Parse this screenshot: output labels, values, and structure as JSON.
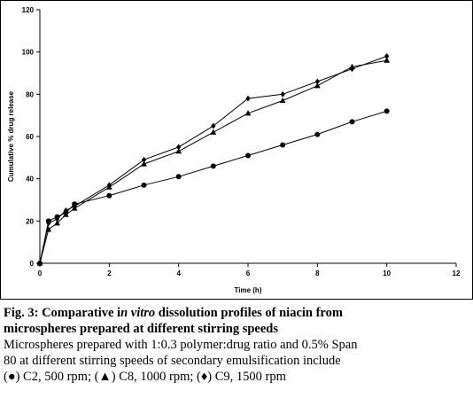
{
  "chart_data": {
    "type": "line",
    "xlabel": "Time (h)",
    "ylabel": "Cumulative % drug release",
    "xlim": [
      0,
      12
    ],
    "ylim": [
      0,
      120
    ],
    "xticks": [
      "0",
      "2",
      "4",
      "6",
      "8",
      "10",
      "12"
    ],
    "yticks": [
      "0",
      "20",
      "40",
      "60",
      "80",
      "100",
      "120"
    ],
    "grid": false,
    "legend": "none",
    "series": [
      {
        "marker": "circle",
        "x": [
          0,
          0.25,
          0.5,
          0.75,
          1,
          2,
          3,
          4,
          5,
          6,
          7,
          8,
          9,
          10
        ],
        "y": [
          0,
          20,
          22,
          24,
          28,
          32,
          37,
          41,
          46,
          51,
          56,
          61,
          67,
          72
        ]
      },
      {
        "marker": "triangle",
        "x": [
          0,
          0.25,
          0.5,
          0.75,
          1,
          2,
          3,
          4,
          5,
          6,
          7,
          8,
          9,
          10
        ],
        "y": [
          0,
          16,
          19,
          23,
          26,
          36,
          47,
          53,
          62,
          71,
          77,
          84,
          93,
          96
        ]
      },
      {
        "marker": "diamond",
        "x": [
          0,
          0.25,
          0.5,
          0.75,
          1,
          2,
          3,
          4,
          5,
          6,
          7,
          8,
          9,
          10
        ],
        "y": [
          0,
          19,
          21,
          25,
          27,
          37,
          49,
          55,
          65,
          78,
          80,
          86,
          92,
          98
        ]
      }
    ]
  },
  "caption": {
    "line1_prefix": "Fig. 3: Comparative i",
    "line1_italic": "n vitro",
    "line1_suffix": " dissolution profiles of niacin from",
    "line2": "microspheres prepared at different stirring speeds",
    "line3": "Microspheres prepared with 1:0.3 polymer:drug ratio and 0.5% Span",
    "line4": "80 at different stirring speeds of secondary emulsification include",
    "line5": "(●) C2, 500 rpm; (▲) C8, 1000 rpm; (♦) C9, 1500 rpm"
  }
}
